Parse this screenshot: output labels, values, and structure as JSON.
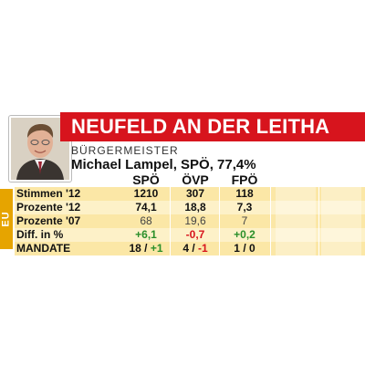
{
  "header": {
    "title": "NEUFELD AN DER LEITHA",
    "subtitle": "BÜRGERMEISTER",
    "person": "Michael Lampel, SPÖ, 77,4%",
    "side_label": "EU"
  },
  "colors": {
    "banner": "#d7141d",
    "accent": "#e6a400",
    "positive": "#2a8f2a",
    "negative": "#d7141d"
  },
  "table": {
    "columns": [
      "SPÖ",
      "ÖVP",
      "FPÖ"
    ],
    "rows": [
      {
        "label": "Stimmen '12",
        "values": [
          "1210",
          "307",
          "118"
        ]
      },
      {
        "label": "Prozente '12",
        "values": [
          "74,1",
          "18,8",
          "7,3"
        ]
      },
      {
        "label": "Prozente '07",
        "values": [
          "68",
          "19,6",
          "7"
        ]
      },
      {
        "label": "Diff. in %",
        "values": [
          "+6,1",
          "-0,7",
          "+0,2"
        ]
      },
      {
        "label": "MANDATE",
        "mandates": [
          {
            "seats": "18",
            "change": "+1"
          },
          {
            "seats": "4",
            "change": "-1"
          },
          {
            "seats": "1",
            "change": "0"
          }
        ]
      }
    ]
  }
}
